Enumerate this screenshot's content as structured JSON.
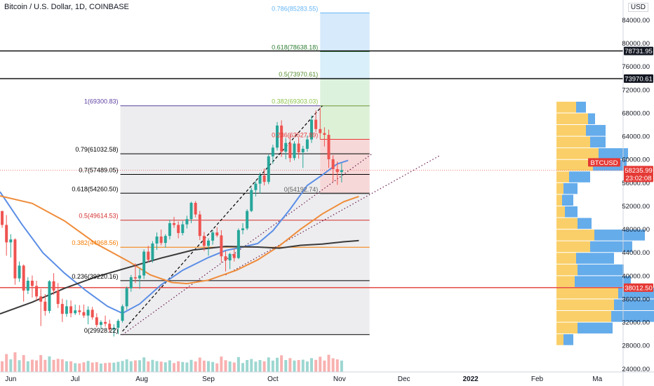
{
  "header": {
    "symbol_title": "Bitcoin / U.S. Dollar, 1D, COINBASE",
    "currency": "USD"
  },
  "chart_data": {
    "type": "candlestick",
    "title": "Bitcoin / U.S. Dollar, 1D, COINBASE",
    "ylim": [
      23500,
      87500
    ],
    "y_ticks": [
      24000,
      28000,
      32000,
      36000,
      40000,
      44000,
      48000,
      52000,
      56000,
      60000,
      64000,
      68000,
      72000,
      76000,
      80000,
      84000
    ],
    "x_ticks": [
      "Jun",
      "Jul",
      "Aug",
      "Sep",
      "Oct",
      "Nov",
      "Dec",
      "2022",
      "Feb",
      "Ma"
    ],
    "x_range_days": [
      -5,
      285
    ],
    "x_tick_days": [
      0,
      30,
      61,
      92,
      122,
      153,
      183,
      214,
      245,
      273
    ],
    "price_labels": [
      {
        "text": "78731.95",
        "value": 78731.95,
        "style": "dark"
      },
      {
        "text": "73970.61",
        "value": 73970.61,
        "style": "dark"
      },
      {
        "text": "BTCUSD",
        "value": 58235.99,
        "style": "red"
      },
      {
        "text": "58235.99",
        "value": 58235.99,
        "style": "red"
      },
      {
        "text": "23:02:08",
        "value": 58235.99,
        "style": "red"
      },
      {
        "text": "38012.50",
        "value": 38012.5,
        "style": "red"
      }
    ],
    "horizontal_lines": [
      {
        "value": 78731.95,
        "color": "#000000"
      },
      {
        "value": 73970.61,
        "color": "#000000"
      },
      {
        "value": 38012.5,
        "color": "#e53935"
      }
    ],
    "fib_retracement": {
      "day_start": 51,
      "day_end": 167,
      "levels": [
        {
          "label": "1(69300.83)",
          "value": 69300.83,
          "color": "#5b3fa0"
        },
        {
          "label": "0.79(61032.58)",
          "value": 61032.58,
          "color": "#000000"
        },
        {
          "label": "0.7(57489.05)",
          "value": 57489.05,
          "color": "#000000"
        },
        {
          "label": "0.618(54260.50)",
          "value": 54260.5,
          "color": "#000000"
        },
        {
          "label": "0.5(49614.53)",
          "value": 49614.53,
          "color": "#d32f2f"
        },
        {
          "label": "0.382(44968.56)",
          "value": 44968.56,
          "color": "#f57c00"
        },
        {
          "label": "0.236(39220.16)",
          "value": 39220.16,
          "color": "#000000"
        },
        {
          "label": "0(29928.22)",
          "value": 29928.22,
          "color": "#000000"
        }
      ]
    },
    "fib_extension": {
      "day_start": 144,
      "day_end": 167,
      "levels": [
        {
          "label": "0.786(85283.55)",
          "value": 85283.55,
          "color": "#64b5f6"
        },
        {
          "label": "0.618(78638.18)",
          "value": 78638.18,
          "color": "#2e7d32"
        },
        {
          "label": "0.5(73970.61)",
          "value": 73970.61,
          "color": "#558b2f"
        },
        {
          "label": "0.382(69303.03)",
          "value": 69303.03,
          "color": "#8bc34a"
        },
        {
          "label": "0.236(63527.89)",
          "value": 63527.89,
          "color": "#e53935"
        },
        {
          "label": "0(54192.74)",
          "value": 54192.74,
          "color": "#616161"
        }
      ]
    },
    "trend_lines": [
      {
        "name": "channel-top",
        "from": [
          52,
          30500
        ],
        "to": [
          145,
          69300
        ],
        "style": "dashed",
        "color": "#000000"
      },
      {
        "name": "support-1",
        "from": [
          52,
          29900
        ],
        "to": [
          168,
          61000
        ],
        "style": "dotted",
        "color": "#6a1b4d"
      },
      {
        "name": "support-2",
        "from": [
          100,
          40200
        ],
        "to": [
          200,
          60800
        ],
        "style": "dotted",
        "color": "#6a1b4d"
      }
    ],
    "moving_averages": [
      {
        "name": "ma-short",
        "color": "#5b8ee6",
        "points": [
          [
            -5,
            54500
          ],
          [
            5,
            49000
          ],
          [
            15,
            44000
          ],
          [
            25,
            40500
          ],
          [
            35,
            37500
          ],
          [
            45,
            34800
          ],
          [
            52,
            33600
          ],
          [
            60,
            35200
          ],
          [
            70,
            38500
          ],
          [
            80,
            41000
          ],
          [
            92,
            43200
          ],
          [
            100,
            44400
          ],
          [
            108,
            45000
          ],
          [
            115,
            45600
          ],
          [
            122,
            47800
          ],
          [
            130,
            51500
          ],
          [
            138,
            55600
          ],
          [
            145,
            57400
          ],
          [
            152,
            59300
          ],
          [
            157,
            59900
          ]
        ]
      },
      {
        "name": "ma-mid",
        "color": "#ef8c3a",
        "points": [
          [
            -5,
            53800
          ],
          [
            10,
            52500
          ],
          [
            25,
            49500
          ],
          [
            40,
            45500
          ],
          [
            55,
            42500
          ],
          [
            65,
            40200
          ],
          [
            75,
            38900
          ],
          [
            82,
            38700
          ],
          [
            92,
            39300
          ],
          [
            105,
            41000
          ],
          [
            115,
            42800
          ],
          [
            125,
            45200
          ],
          [
            135,
            48100
          ],
          [
            145,
            50700
          ],
          [
            155,
            52800
          ],
          [
            162,
            53700
          ]
        ]
      },
      {
        "name": "ma-long",
        "color": "#3a3a3a",
        "points": [
          [
            -5,
            33500
          ],
          [
            10,
            35500
          ],
          [
            25,
            37900
          ],
          [
            40,
            39900
          ],
          [
            55,
            41500
          ],
          [
            70,
            43100
          ],
          [
            85,
            44500
          ],
          [
            100,
            45100
          ],
          [
            115,
            45000
          ],
          [
            125,
            44800
          ],
          [
            135,
            45300
          ],
          [
            145,
            45500
          ],
          [
            155,
            45900
          ],
          [
            162,
            46100
          ]
        ]
      }
    ],
    "candles": [
      [
        -4,
        51200,
        51200,
        48300,
        48800
      ],
      [
        -2,
        48800,
        50500,
        43500,
        45800
      ],
      [
        0,
        45800,
        47200,
        43200,
        46300
      ],
      [
        2,
        46300,
        46500,
        38500,
        39600
      ],
      [
        4,
        39600,
        42500,
        39000,
        41800
      ],
      [
        6,
        41800,
        42000,
        35600,
        37500
      ],
      [
        8,
        37500,
        39800,
        36900,
        39200
      ],
      [
        10,
        39200,
        40100,
        36300,
        38300
      ],
      [
        12,
        38300,
        39200,
        35800,
        36500
      ],
      [
        14,
        36500,
        37800,
        31400,
        35600
      ],
      [
        16,
        35600,
        36900,
        33200,
        34000
      ],
      [
        18,
        34000,
        39300,
        33600,
        39100
      ],
      [
        20,
        39100,
        40500,
        36800,
        37500
      ],
      [
        22,
        37500,
        38800,
        34500,
        35200
      ],
      [
        24,
        35200,
        36100,
        32100,
        33500
      ],
      [
        26,
        33500,
        35900,
        33000,
        34800
      ],
      [
        28,
        34800,
        35800,
        32900,
        33600
      ],
      [
        30,
        33600,
        35100,
        33300,
        34100
      ],
      [
        32,
        34100,
        35000,
        33300,
        33800
      ],
      [
        34,
        33800,
        35100,
        32800,
        33200
      ],
      [
        36,
        33200,
        34800,
        31700,
        34200
      ],
      [
        38,
        34200,
        34700,
        32500,
        32900
      ],
      [
        40,
        32900,
        33600,
        31200,
        31600
      ],
      [
        42,
        31600,
        32400,
        30800,
        32100
      ],
      [
        44,
        32100,
        33200,
        31300,
        31800
      ],
      [
        46,
        31800,
        32500,
        30400,
        30800
      ],
      [
        48,
        30800,
        31700,
        29600,
        31100
      ],
      [
        50,
        31100,
        32600,
        30000,
        32300
      ],
      [
        52,
        32300,
        35100,
        32000,
        34800
      ],
      [
        54,
        34800,
        38200,
        34200,
        37900
      ],
      [
        56,
        37900,
        40200,
        37300,
        39800
      ],
      [
        58,
        39800,
        42200,
        38800,
        39600
      ],
      [
        60,
        39600,
        41300,
        37800,
        40100
      ],
      [
        62,
        40100,
        44600,
        39500,
        44200
      ],
      [
        64,
        44200,
        45200,
        42400,
        42800
      ],
      [
        66,
        42800,
        46000,
        42300,
        45600
      ],
      [
        68,
        45600,
        47500,
        44500,
        46800
      ],
      [
        70,
        46800,
        48000,
        45300,
        45700
      ],
      [
        72,
        45700,
        47200,
        44900,
        46900
      ],
      [
        74,
        46900,
        49700,
        46300,
        49100
      ],
      [
        76,
        49100,
        50200,
        48300,
        48800
      ],
      [
        78,
        48800,
        49400,
        46500,
        47400
      ],
      [
        80,
        47400,
        49500,
        47000,
        48900
      ],
      [
        82,
        48900,
        50400,
        48200,
        49800
      ],
      [
        84,
        49800,
        52800,
        49100,
        52600
      ],
      [
        86,
        52600,
        52900,
        50100,
        50600
      ],
      [
        88,
        50600,
        51200,
        46200,
        46900
      ],
      [
        90,
        46900,
        47600,
        44300,
        45200
      ],
      [
        92,
        45200,
        46500,
        43500,
        46100
      ],
      [
        94,
        46100,
        47900,
        45400,
        47500
      ],
      [
        96,
        47500,
        48400,
        46700,
        47000
      ],
      [
        98,
        47000,
        47900,
        42300,
        43400
      ],
      [
        100,
        43400,
        44300,
        40800,
        42700
      ],
      [
        102,
        42700,
        44000,
        41200,
        43800
      ],
      [
        104,
        43800,
        44700,
        42500,
        43100
      ],
      [
        106,
        43100,
        48200,
        42900,
        47900
      ],
      [
        108,
        47900,
        49100,
        47200,
        48200
      ],
      [
        110,
        48200,
        51500,
        47900,
        51200
      ],
      [
        112,
        51200,
        55200,
        51000,
        54800
      ],
      [
        114,
        54800,
        56400,
        53700,
        55900
      ],
      [
        116,
        55900,
        57800,
        54200,
        57300
      ],
      [
        118,
        57300,
        58500,
        55600,
        56200
      ],
      [
        120,
        56200,
        60900,
        55800,
        60600
      ],
      [
        122,
        60600,
        62600,
        59300,
        62100
      ],
      [
        124,
        62100,
        66500,
        61600,
        65900
      ],
      [
        126,
        65900,
        66800,
        60500,
        61400
      ],
      [
        128,
        61400,
        63700,
        60100,
        62900
      ],
      [
        130,
        62900,
        64300,
        59600,
        60300
      ],
      [
        132,
        60300,
        63200,
        59900,
        62800
      ],
      [
        134,
        62800,
        63800,
        60200,
        61300
      ],
      [
        136,
        61300,
        62400,
        58600,
        61900
      ],
      [
        138,
        61900,
        64200,
        61400,
        63500
      ],
      [
        140,
        63500,
        67600,
        62900,
        66900
      ],
      [
        142,
        66900,
        68500,
        64800,
        65300
      ],
      [
        144,
        65300,
        69000,
        63500,
        64600
      ],
      [
        146,
        64600,
        65600,
        62300,
        64300
      ],
      [
        148,
        64300,
        65200,
        58600,
        60100
      ],
      [
        150,
        60100,
        60800,
        56200,
        58400
      ],
      [
        152,
        58400,
        59700,
        55700,
        57900
      ],
      [
        154,
        57900,
        59400,
        56100,
        58236
      ]
    ],
    "volume_profile": [
      {
        "price": 69000,
        "left": 28,
        "right": 14
      },
      {
        "price": 67000,
        "left": 45,
        "right": 10
      },
      {
        "price": 65000,
        "left": 42,
        "right": 28
      },
      {
        "price": 63000,
        "left": 48,
        "right": 22
      },
      {
        "price": 61000,
        "left": 60,
        "right": 42
      },
      {
        "price": 59000,
        "left": 52,
        "right": 48
      },
      {
        "price": 57000,
        "left": 18,
        "right": 30
      },
      {
        "price": 55000,
        "left": 10,
        "right": 20
      },
      {
        "price": 53000,
        "left": 8,
        "right": 16
      },
      {
        "price": 51000,
        "left": 12,
        "right": 18
      },
      {
        "price": 49000,
        "left": 30,
        "right": 20
      },
      {
        "price": 47000,
        "left": 54,
        "right": 72
      },
      {
        "price": 45000,
        "left": 48,
        "right": 60
      },
      {
        "price": 43000,
        "left": 28,
        "right": 54
      },
      {
        "price": 41000,
        "left": 30,
        "right": 66
      },
      {
        "price": 39000,
        "left": 26,
        "right": 80
      },
      {
        "price": 37000,
        "left": 88,
        "right": 86
      },
      {
        "price": 35000,
        "left": 82,
        "right": 78
      },
      {
        "price": 33000,
        "left": 78,
        "right": 74
      },
      {
        "price": 31000,
        "left": 30,
        "right": 50
      },
      {
        "price": 29000,
        "left": 10,
        "right": 14
      }
    ],
    "colors": {
      "up": "#26a69a",
      "down": "#ef5350",
      "fib_box": "#d8d8dc",
      "profile_up": "#f9c74f",
      "profile_down": "#4a9ee8"
    }
  }
}
